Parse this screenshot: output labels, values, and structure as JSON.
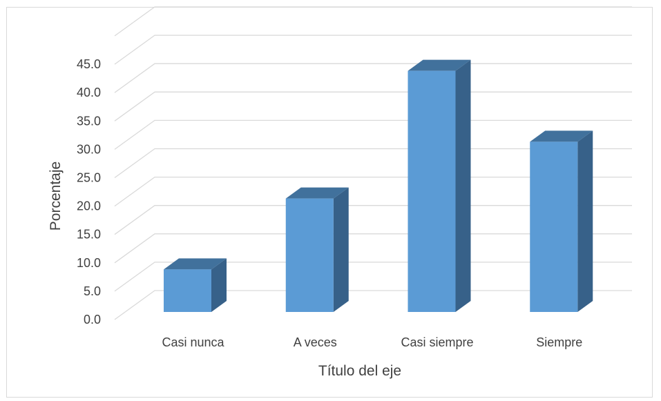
{
  "chart_data": {
    "type": "bar",
    "style": "3d-column",
    "title": "",
    "xlabel": "Título del eje",
    "ylabel": "Porcentaje",
    "categories": [
      "Casi nunca",
      "A veces",
      "Casi siempre",
      "Siempre"
    ],
    "values": [
      7.5,
      20.0,
      42.5,
      30.0
    ],
    "ylim": [
      0,
      45
    ],
    "yticks": [
      "0.0",
      "5.0",
      "10.0",
      "15.0",
      "20.0",
      "25.0",
      "30.0",
      "35.0",
      "40.0",
      "45.0"
    ],
    "grid": true,
    "legend": "none",
    "colors": {
      "bar_front": "#5b9bd5",
      "bar_side": "#376189",
      "bar_top": "#41719c",
      "gridline": "#d9d9d9",
      "text": "#404040"
    }
  }
}
